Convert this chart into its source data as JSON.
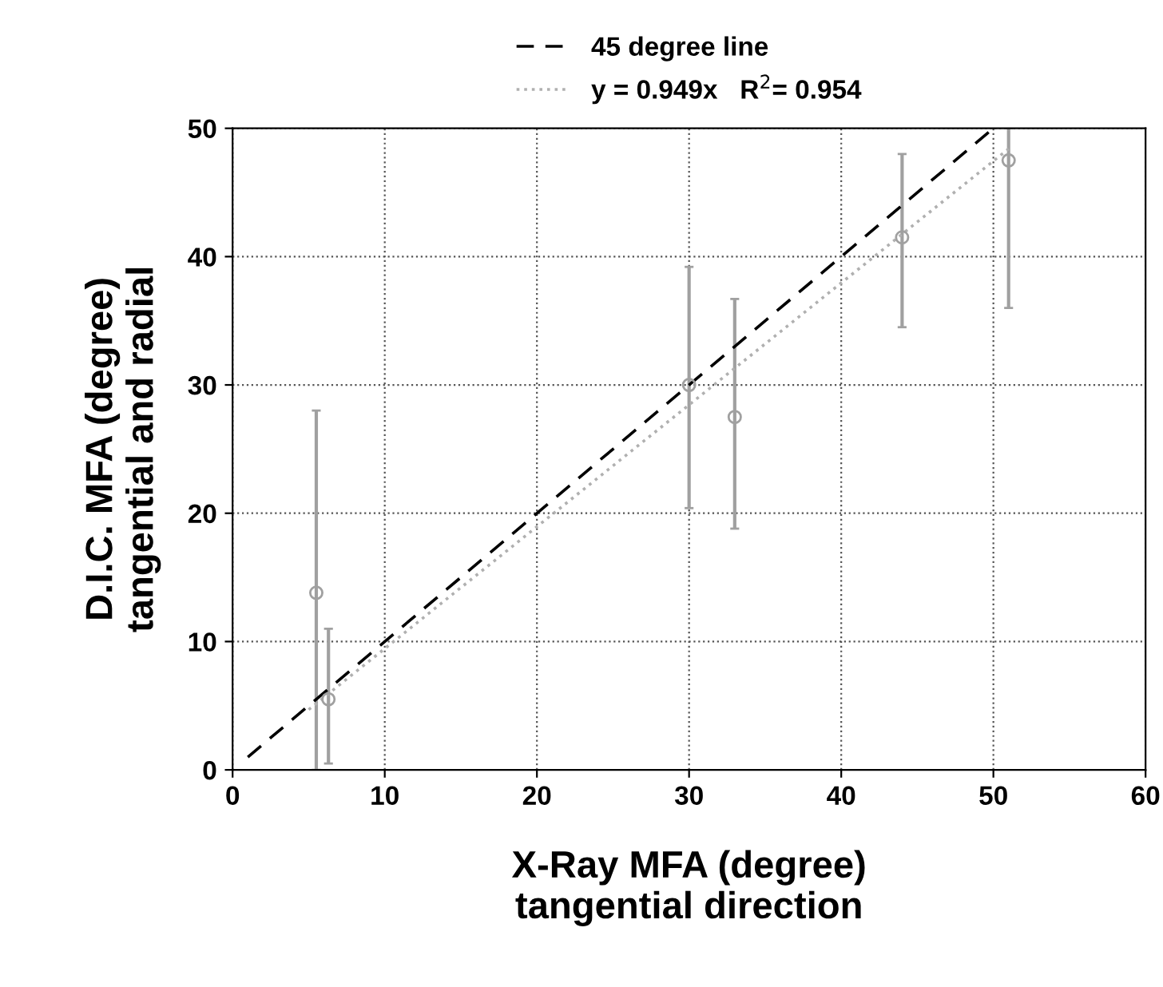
{
  "chart_data": {
    "type": "scatter",
    "xlabel": "X-Ray MFA (degree)\ntangential direction",
    "ylabel": "D.I.C. MFA (degree)\ntangential and radial",
    "series": [
      {
        "color": "#a0a0a0",
        "marker": "circle",
        "x": [
          5.5,
          6.3,
          30,
          33,
          44,
          51
        ],
        "values": [
          13.8,
          5.5,
          30,
          27.5,
          41.5,
          47.5
        ],
        "errors": [
          [
            0,
            28
          ],
          [
            0.5,
            11
          ],
          [
            20.4,
            39.2
          ],
          [
            18.8,
            36.7
          ],
          [
            34.5,
            48
          ],
          [
            36,
            50
          ]
        ]
      },
      {
        "type": "line",
        "name": "45 degree line",
        "color": "#000000",
        "line_style": "dashed",
        "x": [
          1,
          50
        ],
        "values": [
          1,
          50
        ]
      },
      {
        "type": "line",
        "name": "y = 0.949x   R$^{2}$= 0.954",
        "color": "#b0b0b0",
        "line_style": "dotted",
        "x": [
          5,
          51
        ],
        "values": [
          4.7,
          48.4
        ]
      }
    ],
    "xlim": [
      0,
      60
    ],
    "xticks": [
      0,
      10,
      20,
      30,
      40,
      50,
      60
    ],
    "ylim": [
      0,
      50
    ],
    "yticks": [
      0,
      10,
      20,
      30,
      40,
      50
    ],
    "grid": true,
    "legend": "top"
  }
}
